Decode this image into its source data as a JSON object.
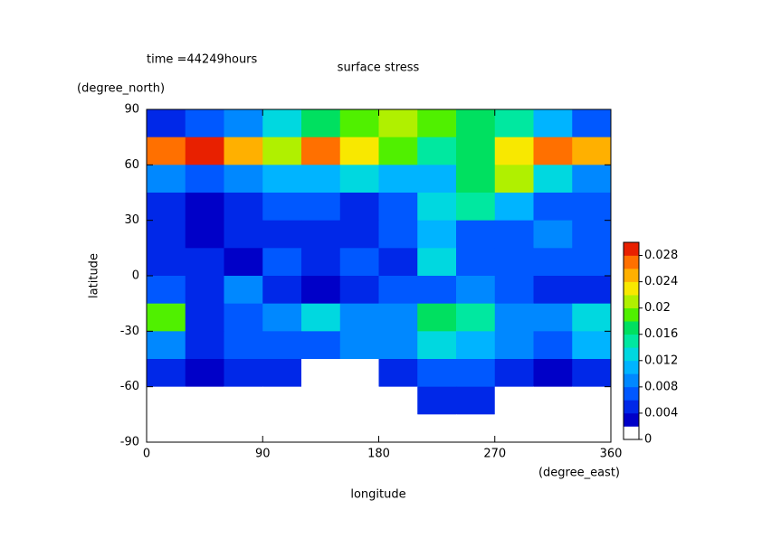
{
  "chart_data": {
    "type": "heatmap",
    "title": "surface stress",
    "subtitle": "time =44249hours",
    "x_label": "longitude",
    "x_unit": "(degree_east)",
    "y_label": "latitude",
    "y_unit": "(degree_north)",
    "xlim": [
      0,
      360
    ],
    "xticks": [
      0,
      90,
      180,
      270,
      360
    ],
    "ylim": [
      -90,
      90
    ],
    "yticks": [
      -90,
      -60,
      -30,
      0,
      30,
      60,
      90
    ],
    "clim": [
      0,
      0.03
    ],
    "cticks": [
      0,
      0.004,
      0.008,
      0.012,
      0.016,
      0.02,
      0.024,
      0.028
    ],
    "colors": [
      "#ffffff",
      "#0000c8",
      "#0028e8",
      "#0058ff",
      "#0088ff",
      "#00b4ff",
      "#00d8e0",
      "#00e8a0",
      "#00e060",
      "#50f000",
      "#b0f000",
      "#f8e800",
      "#ffb000",
      "#ff7000",
      "#e82000"
    ],
    "z": [
      [
        0.004,
        0.006,
        0.008,
        0.012,
        0.016,
        0.018,
        0.02,
        0.018,
        0.016,
        0.014,
        0.01,
        0.006
      ],
      [
        0.026,
        0.028,
        0.024,
        0.02,
        0.026,
        0.022,
        0.018,
        0.014,
        0.016,
        0.022,
        0.026,
        0.024
      ],
      [
        0.008,
        0.006,
        0.008,
        0.01,
        0.01,
        0.012,
        0.01,
        0.01,
        0.016,
        0.02,
        0.012,
        0.008
      ],
      [
        0.004,
        0.002,
        0.004,
        0.006,
        0.006,
        0.004,
        0.006,
        0.012,
        0.014,
        0.01,
        0.006,
        0.006
      ],
      [
        0.004,
        0.002,
        0.004,
        0.004,
        0.004,
        0.004,
        0.006,
        0.01,
        0.006,
        0.006,
        0.008,
        0.006
      ],
      [
        0.004,
        0.004,
        0.002,
        0.006,
        0.004,
        0.006,
        0.004,
        0.012,
        0.006,
        0.006,
        0.006,
        0.006
      ],
      [
        0.006,
        0.004,
        0.008,
        0.004,
        0.002,
        0.004,
        0.006,
        0.006,
        0.008,
        0.006,
        0.004,
        0.004
      ],
      [
        0.018,
        0.004,
        0.006,
        0.008,
        0.012,
        0.008,
        0.008,
        0.016,
        0.014,
        0.008,
        0.008,
        0.012
      ],
      [
        0.008,
        0.004,
        0.006,
        0.006,
        0.006,
        0.008,
        0.008,
        0.012,
        0.01,
        0.008,
        0.006,
        0.01
      ],
      [
        0.004,
        0.002,
        0.004,
        0.004,
        0,
        0,
        0.004,
        0.006,
        0.006,
        0.004,
        0.002,
        0.004
      ],
      [
        0,
        0,
        0,
        0,
        0,
        0,
        0,
        0.004,
        0.004,
        0,
        0,
        0
      ],
      [
        0,
        0,
        0,
        0,
        0,
        0,
        0,
        0,
        0,
        0,
        0,
        0
      ]
    ]
  }
}
